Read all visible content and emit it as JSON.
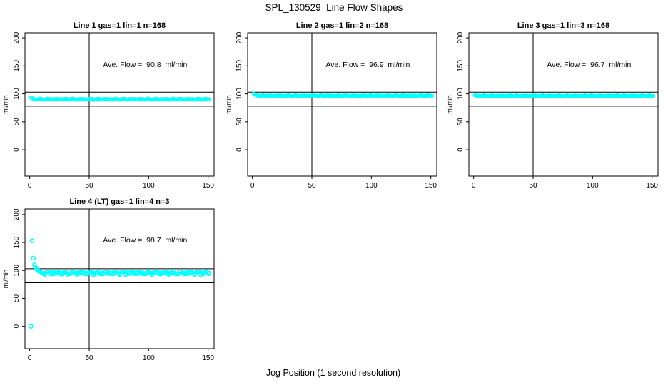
{
  "page": {
    "title": "SPL_130529  Line Flow Shapes",
    "xlabel": "Jog Position (1 second resolution)",
    "background": "#ffffff"
  },
  "colors": {
    "marker": "#00ffff",
    "axis": "#000000",
    "reference_line": "#000000",
    "text": "#000000"
  },
  "chart_data": [
    {
      "type": "scatter",
      "title": "Line 1 gas=1 lin=1 n=168",
      "annotation": "Ave. Flow =  90.8  ml/min",
      "ave_flow_ml_min": 90.8,
      "n": 168,
      "ylabel": "ml/min",
      "xticks": [
        0,
        50,
        100,
        150
      ],
      "yticks": [
        0,
        50,
        100,
        150,
        200
      ],
      "xlim": [
        -4,
        155
      ],
      "ylim": [
        -47,
        209
      ],
      "vline_x": 50,
      "hlines": [
        103,
        78
      ],
      "annotation_xy": [
        97,
        152
      ],
      "marker": {
        "shape": "open-circle",
        "radius": 2.1
      },
      "lead_points": [
        [
          1,
          93.5
        ],
        [
          2,
          92.2
        ],
        [
          3,
          91.3
        ]
      ],
      "plateau": {
        "from": 4,
        "to": 151,
        "value": 90.4,
        "jitter": 0.8
      }
    },
    {
      "type": "scatter",
      "title": "Line 2 gas=1 lin=2 n=168",
      "annotation": "Ave. Flow =  96.9  ml/min",
      "ave_flow_ml_min": 96.9,
      "n": 168,
      "ylabel": "ml/min",
      "xticks": [
        0,
        50,
        100,
        150
      ],
      "yticks": [
        0,
        50,
        100,
        150,
        200
      ],
      "xlim": [
        -4,
        155
      ],
      "ylim": [
        -47,
        209
      ],
      "vline_x": 50,
      "hlines": [
        103,
        78
      ],
      "annotation_xy": [
        97,
        152
      ],
      "marker": {
        "shape": "open-circle",
        "radius": 2.1
      },
      "lead_points": [
        [
          1,
          101
        ],
        [
          2,
          99
        ],
        [
          3,
          98
        ],
        [
          4,
          97.3
        ]
      ],
      "plateau": {
        "from": 5,
        "to": 151,
        "value": 96.6,
        "jitter": 0.8
      }
    },
    {
      "type": "scatter",
      "title": "Line 3 gas=1 lin=3 n=168",
      "annotation": "Ave. Flow =  96.7  ml/min",
      "ave_flow_ml_min": 96.7,
      "n": 168,
      "ylabel": "ml/min",
      "xticks": [
        0,
        50,
        100,
        150
      ],
      "yticks": [
        0,
        50,
        100,
        150,
        200
      ],
      "xlim": [
        -4,
        155
      ],
      "ylim": [
        -47,
        209
      ],
      "vline_x": 50,
      "hlines": [
        103,
        78
      ],
      "annotation_xy": [
        97,
        152
      ],
      "marker": {
        "shape": "open-circle",
        "radius": 2.1
      },
      "lead_points": [
        [
          1,
          97.5
        ],
        [
          2,
          96.8
        ]
      ],
      "plateau": {
        "from": 3,
        "to": 151,
        "value": 96.4,
        "jitter": 0.8
      }
    },
    {
      "type": "scatter",
      "title": "Line 4 (LT) gas=1 lin=4 n=3",
      "annotation": "Ave. Flow =  98.7  ml/min",
      "ave_flow_ml_min": 98.7,
      "n": 3,
      "ylabel": "ml/min",
      "xticks": [
        0,
        50,
        100,
        150
      ],
      "yticks": [
        0,
        50,
        100,
        150,
        200
      ],
      "xlim": [
        -4,
        155
      ],
      "ylim": [
        -40,
        210
      ],
      "vline_x": 50,
      "hlines": [
        103,
        78
      ],
      "annotation_xy": [
        97,
        154
      ],
      "marker": {
        "shape": "open-circle",
        "radius": 2.6
      },
      "lead_points": [
        [
          1,
          0
        ],
        [
          2,
          153
        ],
        [
          3,
          122
        ],
        [
          4,
          110
        ],
        [
          5,
          105
        ],
        [
          6,
          102
        ],
        [
          7,
          100
        ],
        [
          8,
          98.5
        ],
        [
          9,
          97.5
        ]
      ],
      "plateau": {
        "from": 10,
        "to": 151,
        "value": 95.5,
        "jitter": 2.4
      }
    }
  ]
}
